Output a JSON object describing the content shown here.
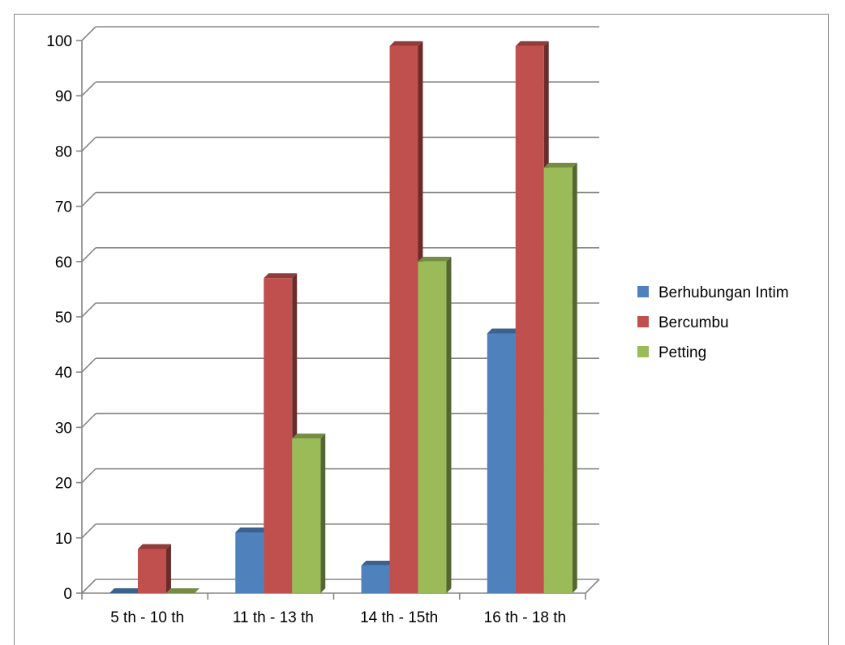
{
  "chart_data": {
    "type": "bar",
    "categories": [
      "5 th - 10 th",
      "11 th - 13 th",
      "14 th - 15th",
      "16 th - 18 th"
    ],
    "series": [
      {
        "name": "Berhubungan Intim",
        "values": [
          0,
          11,
          5,
          47
        ],
        "color": "#4f81bd"
      },
      {
        "name": "Bercumbu",
        "values": [
          8,
          57,
          99,
          99
        ],
        "color": "#c0504d"
      },
      {
        "name": "Petting",
        "values": [
          0,
          28,
          60,
          77
        ],
        "color": "#9bbb59"
      }
    ],
    "ylim": [
      0,
      100
    ],
    "yticks": [
      0,
      10,
      20,
      30,
      40,
      50,
      60,
      70,
      80,
      90,
      100
    ],
    "grid": true,
    "legend_position": "right",
    "style": "3d-clustered-column"
  }
}
